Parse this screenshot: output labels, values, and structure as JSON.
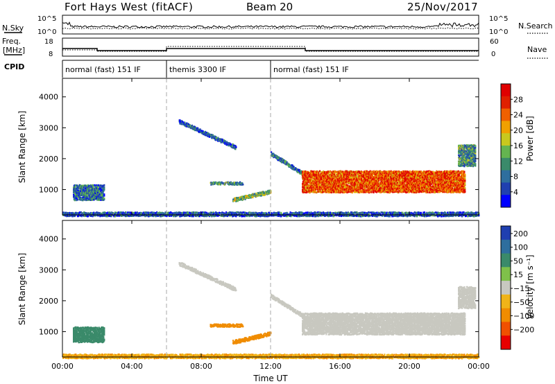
{
  "header": {
    "station": "Fort Hays West (fitACF)",
    "beam": "Beam 20",
    "date": "25/Nov/2017"
  },
  "noise_panel": {
    "left_label": "N.Sky",
    "right_label": "N.Search",
    "left_ticks": [
      "10^5",
      "10^0"
    ],
    "right_ticks": [
      "10^5",
      "10^0"
    ]
  },
  "freq_panel": {
    "left_label_line1": "Freq.",
    "left_label_line2": "[MHz]",
    "right_label": "Nave",
    "left_ticks": [
      "18",
      "8"
    ],
    "right_ticks": [
      "60",
      "0"
    ]
  },
  "cpid": {
    "label": "CPID",
    "segments": [
      {
        "name": "normal (fast) 151 IF",
        "start_hour": 0,
        "end_hour": 6
      },
      {
        "name": "themis 3300 IF",
        "start_hour": 6,
        "end_hour": 12
      },
      {
        "name": "normal (fast) 151 IF",
        "start_hour": 12,
        "end_hour": 24
      }
    ]
  },
  "colors": {
    "power": [
      "#0000ff",
      "#2040b0",
      "#2e6e9e",
      "#3a8a6a",
      "#64b450",
      "#c8c81e",
      "#f0a000",
      "#f06000",
      "#e02000",
      "#e00000"
    ],
    "velocity": [
      "#1f3fb0",
      "#2e6e9e",
      "#3a8a6a",
      "#7fc04a",
      "#c8c8c0",
      "#f0b418",
      "#f08c00",
      "#f05000",
      "#e80000"
    ],
    "background_range": "#c0c0c0"
  },
  "chart_data": [
    {
      "type": "heatmap",
      "title": "Power",
      "xlabel": "",
      "ylabel": "Slant Range [km]",
      "xlim": [
        0,
        24
      ],
      "ylim": [
        180,
        4600
      ],
      "y_ticks": [
        "1000",
        "2000",
        "3000",
        "4000"
      ],
      "colorbar_label": "Power [dB]",
      "colorbar_ticks": [
        "4",
        "8",
        "12",
        "16",
        "20",
        "24",
        "28"
      ],
      "features": [
        {
          "name": "morning echo",
          "t_start": 0.6,
          "t_end": 2.4,
          "range_min": 700,
          "range_max": 1200,
          "value": 8
        },
        {
          "name": "descending band 1",
          "t_start": 6.7,
          "t_end": 10.0,
          "range_start": 3250,
          "range_end": 2400,
          "value": 6
        },
        {
          "name": "band 1200 km",
          "t_start": 8.5,
          "t_end": 10.4,
          "range_min": 1200,
          "range_max": 1300,
          "value": 10
        },
        {
          "name": "band 700-950 km",
          "t_start": 9.8,
          "t_end": 12.0,
          "range_start": 700,
          "range_end": 980,
          "value": 14
        },
        {
          "name": "descending band 2",
          "t_start": 12.0,
          "t_end": 14.0,
          "range_start": 2200,
          "range_end": 1500,
          "value": 8
        },
        {
          "name": "main echo",
          "t_start": 13.8,
          "t_end": 23.2,
          "range_min": 950,
          "range_max": 1650,
          "value": 24
        },
        {
          "name": "late echo",
          "t_start": 22.8,
          "t_end": 23.8,
          "range_min": 1800,
          "range_max": 2500,
          "value": 10
        },
        {
          "name": "near range",
          "t_start": 0.0,
          "t_end": 24.0,
          "range_min": 180,
          "range_max": 320,
          "value": 6
        }
      ]
    },
    {
      "type": "heatmap",
      "title": "Velocity",
      "xlabel": "Time UT",
      "ylabel": "Slant Range [km]",
      "xlim": [
        0,
        24
      ],
      "ylim": [
        180,
        4600
      ],
      "x_ticks": [
        "00:00",
        "04:00",
        "08:00",
        "12:00",
        "16:00",
        "20:00",
        "00:00"
      ],
      "y_ticks": [
        "1000",
        "2000",
        "3000",
        "4000"
      ],
      "colorbar_label": "Velocity [m s⁻¹]",
      "colorbar_ticks": [
        "200",
        "100",
        "50",
        "15",
        "−15",
        "−50",
        "−100",
        "−200"
      ],
      "features": [
        {
          "name": "morning echo",
          "t_start": 0.6,
          "t_end": 2.4,
          "range_min": 700,
          "range_max": 1200,
          "value": 50
        },
        {
          "name": "descending band 1",
          "t_start": 6.7,
          "t_end": 10.0,
          "range_start": 3250,
          "range_end": 2400,
          "value": 0
        },
        {
          "name": "band 1200 km",
          "t_start": 8.5,
          "t_end": 10.4,
          "range_min": 1200,
          "range_max": 1300,
          "value": -40
        },
        {
          "name": "band 700-950 km",
          "t_start": 9.8,
          "t_end": 12.0,
          "range_start": 700,
          "range_end": 980,
          "value": -40
        },
        {
          "name": "descending band 2",
          "t_start": 12.0,
          "t_end": 14.0,
          "range_start": 2200,
          "range_end": 1500,
          "value": 0
        },
        {
          "name": "main echo",
          "t_start": 13.8,
          "t_end": 23.2,
          "range_min": 950,
          "range_max": 1650,
          "value": 0
        },
        {
          "name": "late echo",
          "t_start": 22.8,
          "t_end": 23.8,
          "range_min": 1800,
          "range_max": 2500,
          "value": 0
        },
        {
          "name": "near range",
          "t_start": 0.0,
          "t_end": 24.0,
          "range_min": 180,
          "range_max": 320,
          "value": -30
        }
      ]
    }
  ]
}
